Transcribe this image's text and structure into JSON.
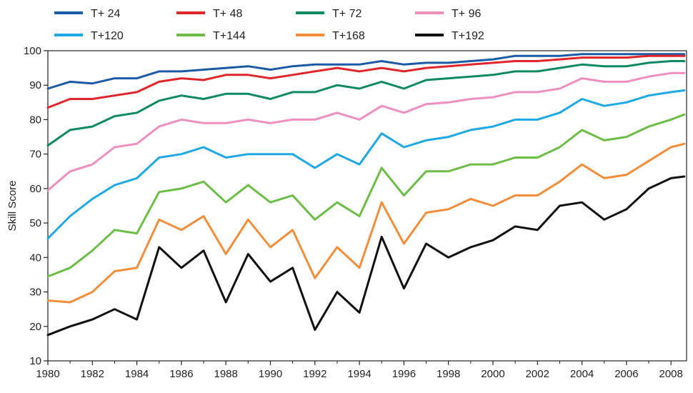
{
  "chart_data": {
    "type": "line",
    "title": "",
    "xlabel": "",
    "ylabel": "Skill Score",
    "xlim": [
      1980,
      2008.7
    ],
    "ylim": [
      10,
      100
    ],
    "grid": false,
    "legend_position": "top",
    "x_ticks": [
      1980,
      1982,
      1984,
      1986,
      1988,
      1990,
      1992,
      1994,
      1996,
      1998,
      2000,
      2002,
      2004,
      2006,
      2008
    ],
    "y_ticks": [
      10,
      20,
      30,
      40,
      50,
      60,
      70,
      80,
      90,
      100
    ],
    "series": [
      {
        "name": "T+ 24",
        "color": "#1b5aa6",
        "x": [
          1980,
          1981,
          1982,
          1983,
          1984,
          1985,
          1986,
          1987,
          1988,
          1989,
          1990,
          1991,
          1992,
          1993,
          1994,
          1995,
          1996,
          1997,
          1998,
          1999,
          2000,
          2001,
          2002,
          2003,
          2004,
          2005,
          2006,
          2007,
          2008,
          2008.6
        ],
        "y": [
          89,
          91,
          90.5,
          92,
          92,
          94,
          94,
          94.5,
          95,
          95.5,
          94.5,
          95.5,
          96,
          96,
          96,
          97,
          96,
          96.5,
          96.5,
          97,
          97.5,
          98.5,
          98.5,
          98.5,
          99,
          99,
          99,
          99,
          99,
          99
        ]
      },
      {
        "name": "T+ 48",
        "color": "#e0262b",
        "x": [
          1980,
          1981,
          1982,
          1983,
          1984,
          1985,
          1986,
          1987,
          1988,
          1989,
          1990,
          1991,
          1992,
          1993,
          1994,
          1995,
          1996,
          1997,
          1998,
          1999,
          2000,
          2001,
          2002,
          2003,
          2004,
          2005,
          2006,
          2007,
          2008,
          2008.6
        ],
        "y": [
          83.5,
          86,
          86,
          87,
          88,
          91,
          92,
          91.5,
          93,
          93,
          92,
          93,
          94,
          95,
          94,
          95,
          94,
          95,
          95.5,
          96,
          96.5,
          97,
          97,
          97.5,
          98,
          98,
          98,
          98.5,
          98.5,
          98.5
        ]
      },
      {
        "name": "T+ 72",
        "color": "#0e8a5f",
        "x": [
          1980,
          1981,
          1982,
          1983,
          1984,
          1985,
          1986,
          1987,
          1988,
          1989,
          1990,
          1991,
          1992,
          1993,
          1994,
          1995,
          1996,
          1997,
          1998,
          1999,
          2000,
          2001,
          2002,
          2003,
          2004,
          2005,
          2006,
          2007,
          2008,
          2008.6
        ],
        "y": [
          72.5,
          77,
          78,
          81,
          82,
          85.5,
          87,
          86,
          87.5,
          87.5,
          86,
          88,
          88,
          90,
          89,
          91,
          89,
          91.5,
          92,
          92.5,
          93,
          94,
          94,
          95,
          96,
          95.5,
          95.5,
          96.5,
          97,
          97
        ]
      },
      {
        "name": "T+ 96",
        "color": "#ee8fbe",
        "x": [
          1980,
          1981,
          1982,
          1983,
          1984,
          1985,
          1986,
          1987,
          1988,
          1989,
          1990,
          1991,
          1992,
          1993,
          1994,
          1995,
          1996,
          1997,
          1998,
          1999,
          2000,
          2001,
          2002,
          2003,
          2004,
          2005,
          2006,
          2007,
          2008,
          2008.6
        ],
        "y": [
          59.5,
          65,
          67,
          72,
          73,
          78,
          80,
          79,
          79,
          80,
          79,
          80,
          80,
          82,
          80,
          84,
          82,
          84.5,
          85,
          86,
          86.5,
          88,
          88,
          89,
          92,
          91,
          91,
          92.5,
          93.5,
          93.5
        ]
      },
      {
        "name": "T+120",
        "color": "#1ea8e4",
        "x": [
          1980,
          1981,
          1982,
          1983,
          1984,
          1985,
          1986,
          1987,
          1988,
          1989,
          1990,
          1991,
          1992,
          1993,
          1994,
          1995,
          1996,
          1997,
          1998,
          1999,
          2000,
          2001,
          2002,
          2003,
          2004,
          2005,
          2006,
          2007,
          2008,
          2008.6
        ],
        "y": [
          45.5,
          52,
          57,
          61,
          63,
          69,
          70,
          72,
          69,
          70,
          70,
          70,
          66,
          70,
          67,
          76,
          72,
          74,
          75,
          77,
          78,
          80,
          80,
          82,
          86,
          84,
          85,
          87,
          88,
          88.5
        ]
      },
      {
        "name": "T+144",
        "color": "#6cbd45",
        "x": [
          1980,
          1981,
          1982,
          1983,
          1984,
          1985,
          1986,
          1987,
          1988,
          1989,
          1990,
          1991,
          1992,
          1993,
          1994,
          1995,
          1996,
          1997,
          1998,
          1999,
          2000,
          2001,
          2002,
          2003,
          2004,
          2005,
          2006,
          2007,
          2008,
          2008.6
        ],
        "y": [
          34.5,
          37,
          42,
          48,
          47,
          59,
          60,
          62,
          56,
          61,
          56,
          58,
          51,
          56,
          52,
          66,
          58,
          65,
          65,
          67,
          67,
          69,
          69,
          72,
          77,
          74,
          75,
          78,
          80,
          81.5
        ]
      },
      {
        "name": "T+168",
        "color": "#f38d3a",
        "x": [
          1980,
          1981,
          1982,
          1983,
          1984,
          1985,
          1986,
          1987,
          1988,
          1989,
          1990,
          1991,
          1992,
          1993,
          1994,
          1995,
          1996,
          1997,
          1998,
          1999,
          2000,
          2001,
          2002,
          2003,
          2004,
          2005,
          2006,
          2007,
          2008,
          2008.6
        ],
        "y": [
          27.5,
          27,
          30,
          36,
          37,
          51,
          48,
          52,
          41,
          51,
          43,
          48,
          34,
          43,
          37,
          56,
          44,
          53,
          54,
          57,
          55,
          58,
          58,
          62,
          67,
          63,
          64,
          68,
          72,
          73
        ]
      },
      {
        "name": "T+192",
        "color": "#111111",
        "x": [
          1980,
          1981,
          1982,
          1983,
          1984,
          1985,
          1986,
          1987,
          1988,
          1989,
          1990,
          1991,
          1992,
          1993,
          1994,
          1995,
          1996,
          1997,
          1998,
          1999,
          2000,
          2001,
          2002,
          2003,
          2004,
          2005,
          2006,
          2007,
          2008,
          2008.6
        ],
        "y": [
          17.5,
          20,
          22,
          25,
          22,
          43,
          37,
          42,
          27,
          41,
          33,
          37,
          19,
          30,
          24,
          46,
          31,
          44,
          40,
          43,
          45,
          49,
          48,
          55,
          56,
          51,
          54,
          60,
          63,
          63.5
        ]
      }
    ]
  }
}
